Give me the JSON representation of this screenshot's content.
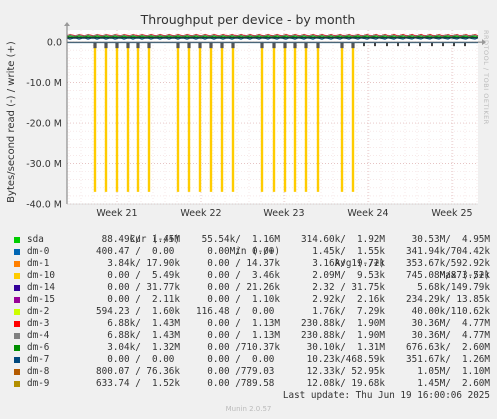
{
  "chart_data": {
    "type": "line",
    "title": "Throughput per device - by month",
    "ylabel": "Bytes/second read (-) / write (+)",
    "side_label": "RRDTOOL / TOBI OETIKER",
    "ylim": [
      -40000000,
      3000000
    ],
    "yticks": [
      {
        "value": 0,
        "label": "0.0"
      },
      {
        "value": -10000000,
        "label": "-10.0 M"
      },
      {
        "value": -20000000,
        "label": "-20.0 M"
      },
      {
        "value": -30000000,
        "label": "-30.0 M"
      },
      {
        "value": -40000000,
        "label": "-40.0 M"
      }
    ],
    "xticks": [
      "Week 21",
      "Week 22",
      "Week 23",
      "Week 24",
      "Week 25"
    ],
    "spike_depth": -37000000,
    "spike_count": 20,
    "legend_headers": {
      "cur": "Cur (-/+)",
      "min": "Min (-/+)",
      "avg": "Avg (-/+)",
      "max": "Max (-/+)"
    },
    "series": [
      {
        "name": "sda",
        "color": "#00cc00",
        "cur": "88.49k/  1.45M",
        "min": "55.54k/  1.16M",
        "avg": "314.60k/  1.92M",
        "max": "30.53M/  4.95M"
      },
      {
        "name": "dm-0",
        "color": "#0066b3",
        "cur": "400.47 /  0.00 ",
        "min": "0.00 /  0.00 ",
        "avg": "1.45k/  1.55k",
        "max": "341.94k/704.42k"
      },
      {
        "name": "dm-1",
        "color": "#ff8000",
        "cur": "3.84k/ 17.90k",
        "min": "0.00 / 14.37k",
        "avg": "3.16k/ 19.72k",
        "max": "353.67k/592.92k"
      },
      {
        "name": "dm-10",
        "color": "#ffcc00",
        "cur": "0.00 /  5.49k",
        "min": "0.00 /  3.46k",
        "avg": "2.09M/  9.53k",
        "max": "745.08M/873.52k"
      },
      {
        "name": "dm-14",
        "color": "#330099",
        "cur": "0.00 / 31.77k",
        "min": "0.00 / 21.26k",
        "avg": "2.32 / 31.75k",
        "max": "5.68k/149.79k"
      },
      {
        "name": "dm-15",
        "color": "#990099",
        "cur": "0.00 /  2.11k",
        "min": "0.00 /  1.10k",
        "avg": "2.92k/  2.16k",
        "max": "234.29k/ 13.85k"
      },
      {
        "name": "dm-2",
        "color": "#ccff00",
        "cur": "594.23 /  1.60k",
        "min": "116.48 /  0.00 ",
        "avg": "1.76k/  7.29k",
        "max": "40.00k/110.62k"
      },
      {
        "name": "dm-3",
        "color": "#ff0000",
        "cur": "6.88k/  1.43M",
        "min": "0.00 /  1.13M",
        "avg": "230.88k/  1.90M",
        "max": "30.36M/  4.77M"
      },
      {
        "name": "dm-4",
        "color": "#808080",
        "cur": "6.88k/  1.43M",
        "min": "0.00 /  1.13M",
        "avg": "230.88k/  1.90M",
        "max": "30.36M/  4.77M"
      },
      {
        "name": "dm-6",
        "color": "#008f00",
        "cur": "3.04k/  1.32M",
        "min": "0.00 /710.37k",
        "avg": "30.10k/  1.31M",
        "max": "676.63k/  2.60M"
      },
      {
        "name": "dm-7",
        "color": "#00487d",
        "cur": "0.00 /  0.00 ",
        "min": "0.00 /  0.00 ",
        "avg": "10.23k/468.59k",
        "max": "351.67k/  1.26M"
      },
      {
        "name": "dm-8",
        "color": "#b35a00",
        "cur": "800.07 / 76.36k",
        "min": "0.00 /779.03 ",
        "avg": "12.33k/ 52.95k",
        "max": "1.05M/  1.10M"
      },
      {
        "name": "dm-9",
        "color": "#b38f00",
        "cur": "633.74 /  1.52k",
        "min": "0.00 /789.58 ",
        "avg": "12.08k/ 19.68k",
        "max": "1.45M/  2.60M"
      }
    ],
    "last_update": "Last update: Thu Jun 19 16:00:06 2025",
    "footer": "Munin 2.0.57"
  }
}
